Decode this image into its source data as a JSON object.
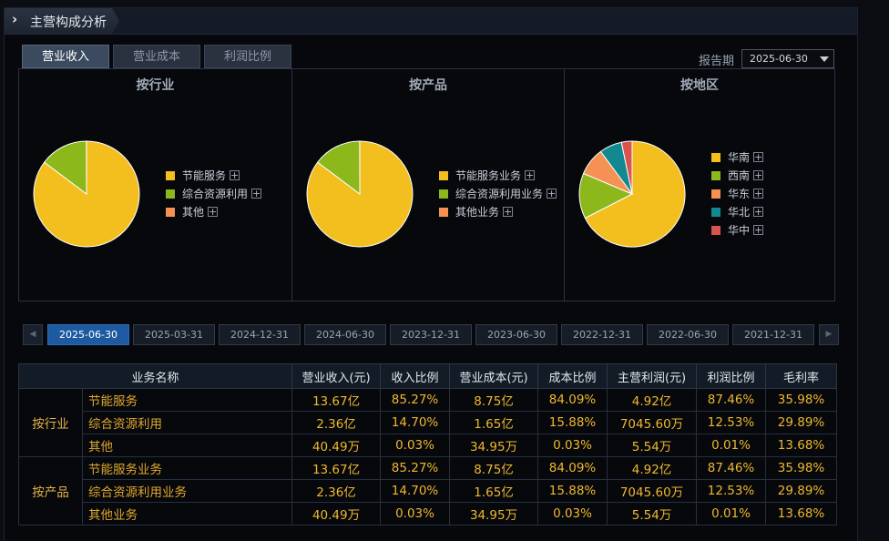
{
  "header": {
    "title": "主营构成分析"
  },
  "tabs": [
    "营业收入",
    "营业成本",
    "利润比例"
  ],
  "active_tab": 0,
  "report_period": {
    "label": "报告期",
    "value": "2025-06-30"
  },
  "charts": [
    {
      "title": "按行业",
      "legend": [
        {
          "label": "节能服务",
          "color": "#f2bf1f"
        },
        {
          "label": "综合资源利用",
          "color": "#8cb81b"
        },
        {
          "label": "其他",
          "color": "#f59153"
        }
      ],
      "values": [
        85.27,
        14.7,
        0.03
      ]
    },
    {
      "title": "按产品",
      "legend": [
        {
          "label": "节能服务业务",
          "color": "#f2bf1f"
        },
        {
          "label": "综合资源利用业务",
          "color": "#8cb81b"
        },
        {
          "label": "其他业务",
          "color": "#f59153"
        }
      ],
      "values": [
        85.27,
        14.7,
        0.03
      ]
    },
    {
      "title": "按地区",
      "legend": [
        {
          "label": "华南",
          "color": "#f2bf1f"
        },
        {
          "label": "西南",
          "color": "#8cb81b"
        },
        {
          "label": "华东",
          "color": "#f59153"
        },
        {
          "label": "华北",
          "color": "#12888f"
        },
        {
          "label": "华中",
          "color": "#d9534f"
        }
      ],
      "values": [
        67.45,
        13.9,
        8.5,
        6.9,
        3.25
      ]
    }
  ],
  "legend_plus": "+",
  "date_nav": {
    "prev": "◀",
    "next": "▶"
  },
  "dates": [
    "2025-06-30",
    "2025-03-31",
    "2024-12-31",
    "2024-06-30",
    "2023-12-31",
    "2023-06-30",
    "2022-12-31",
    "2022-06-30",
    "2021-12-31"
  ],
  "active_date": 0,
  "table": {
    "headers": [
      "业务名称",
      "营业收入(元)",
      "收入比例",
      "营业成本(元)",
      "成本比例",
      "主营利润(元)",
      "利润比例",
      "毛利率"
    ],
    "groups": [
      {
        "name": "按行业",
        "rows": [
          [
            "节能服务",
            "13.67亿",
            "85.27%",
            "8.75亿",
            "84.09%",
            "4.92亿",
            "87.46%",
            "35.98%"
          ],
          [
            "综合资源利用",
            "2.36亿",
            "14.70%",
            "1.65亿",
            "15.88%",
            "7045.60万",
            "12.53%",
            "29.89%"
          ],
          [
            "其他",
            "40.49万",
            "0.03%",
            "34.95万",
            "0.03%",
            "5.54万",
            "0.01%",
            "13.68%"
          ]
        ]
      },
      {
        "name": "按产品",
        "rows": [
          [
            "节能服务业务",
            "13.67亿",
            "85.27%",
            "8.75亿",
            "84.09%",
            "4.92亿",
            "87.46%",
            "35.98%"
          ],
          [
            "综合资源利用业务",
            "2.36亿",
            "14.70%",
            "1.65亿",
            "15.88%",
            "7045.60万",
            "12.53%",
            "29.89%"
          ],
          [
            "其他业务",
            "40.49万",
            "0.03%",
            "34.95万",
            "0.03%",
            "5.54万",
            "0.01%",
            "13.68%"
          ]
        ]
      }
    ]
  },
  "colors": {
    "accent": "#1e5aa0",
    "value_text": "#f0b82c"
  }
}
